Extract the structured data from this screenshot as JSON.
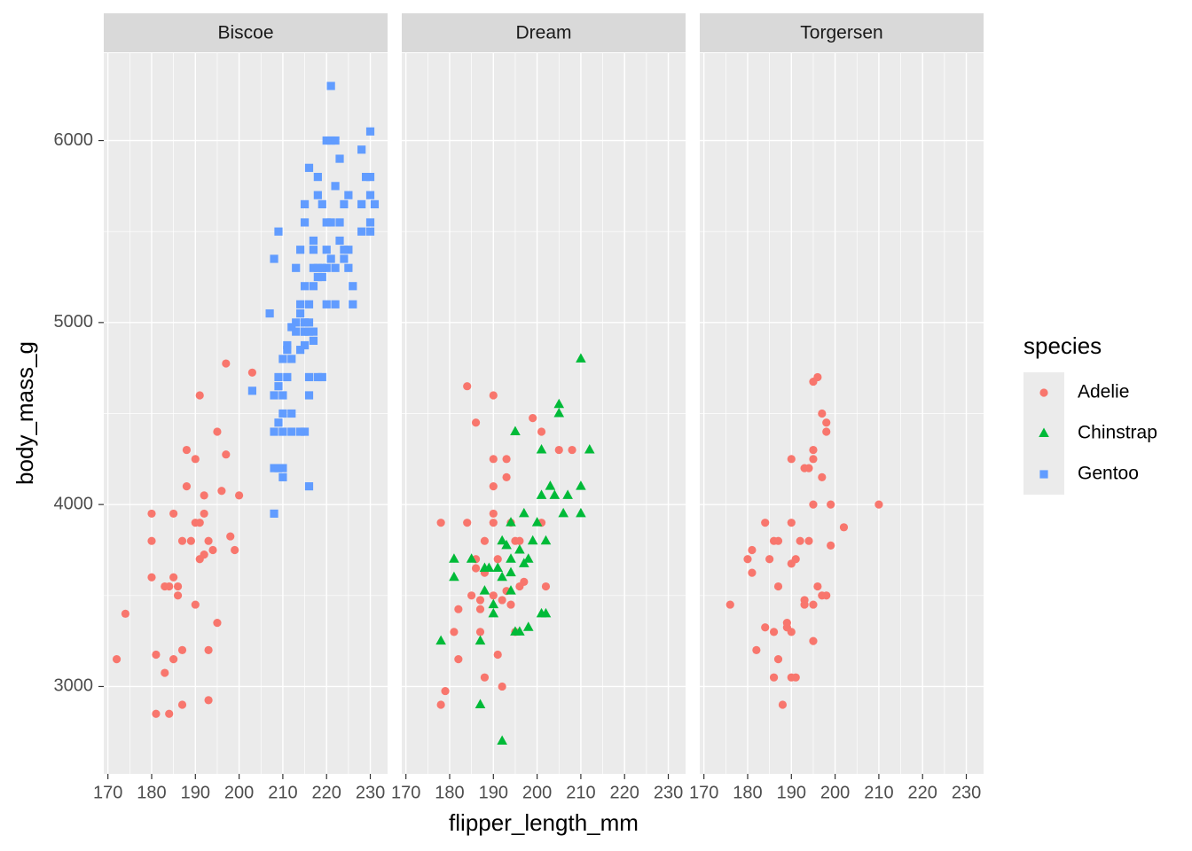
{
  "chart_data": {
    "type": "scatter",
    "xlabel": "flipper_length_mm",
    "ylabel": "body_mass_g",
    "legend_title": "species",
    "legend": "right",
    "grid": true,
    "xlim": [
      169.05,
      233.95
    ],
    "xticks": [
      170,
      180,
      190,
      200,
      210,
      220,
      230
    ],
    "ylim": [
      2520,
      6480
    ],
    "yticks": [
      3000,
      4000,
      5000,
      6000
    ],
    "series": [
      {
        "name": "Adelie",
        "color": "#F8766D",
        "shape": "circle"
      },
      {
        "name": "Chinstrap",
        "color": "#00BA38",
        "shape": "triangle"
      },
      {
        "name": "Gentoo",
        "color": "#619CFF",
        "shape": "square"
      }
    ],
    "facets": [
      {
        "title": "Biscoe",
        "series": [
          {
            "x": [
              172,
              174,
              180,
              180,
              180,
              181,
              181,
              183,
              183,
              184,
              184,
              185,
              185,
              185,
              186,
              186,
              187,
              187,
              187,
              188,
              188,
              189,
              190,
              190,
              190,
              191,
              191,
              191,
              192,
              192,
              192,
              193,
              193,
              193,
              194,
              195,
              195,
              196,
              197,
              197,
              198,
              199,
              200,
              203
            ],
            "values": [
              3150,
              3400,
              3950,
              3800,
              3600,
              3175,
              2850,
              3075,
              3550,
              3550,
              2850,
              3950,
              3600,
              3150,
              3550,
              3500,
              3800,
              2900,
              3200,
              4300,
              4100,
              3800,
              4250,
              3900,
              3450,
              3900,
              4600,
              3700,
              4050,
              3950,
              3725,
              3800,
              3200,
              2925,
              3750,
              4400,
              3350,
              4075,
              4775,
              4275,
              3825,
              3750,
              4050,
              4725
            ]
          },
          {
            "x": [],
            "values": []
          },
          {
            "x": [
              203,
              207,
              208,
              208,
              209,
              208,
              209,
              210,
              210,
              208,
              209,
              210,
              208,
              209,
              210,
              209,
              210,
              210,
              211,
              211,
              212,
              212,
              212,
              213,
              213,
              214,
              214,
              214,
              214,
              215,
              215,
              215,
              215,
              215,
              215,
              215,
              216,
              216,
              216,
              216,
              216,
              216,
              217,
              217,
              217,
              217,
              217,
              218,
              218,
              218,
              218,
              219,
              219,
              219,
              220,
              220,
              220,
              220,
              220,
              221,
              221,
              221,
              221,
              222,
              222,
              222,
              223,
              223,
              223,
              224,
              224,
              225,
              225,
              226,
              228,
              228,
              228,
              229,
              230,
              230,
              230,
              230,
              231,
              230,
              225,
              222,
              218,
              215,
              213,
              212,
              211,
              214,
              216,
              215,
              217,
              219,
              224,
              226
            ],
            "values": [
              4625,
              5050,
              3950,
              5350,
              5500,
              4200,
              4200,
              4200,
              4150,
              4400,
              4450,
              4500,
              4600,
              4650,
              4600,
              4700,
              4800,
              4400,
              4875,
              4700,
              4800,
              4975,
              4400,
              5300,
              5000,
              5100,
              5400,
              4850,
              4400,
              4875,
              4950,
              5000,
              5550,
              5650,
              5200,
              4400,
              4700,
              4600,
              5000,
              5100,
              5850,
              4100,
              4900,
              5200,
              5300,
              5450,
              5400,
              5300,
              5700,
              4700,
              5250,
              5250,
              5650,
              4700,
              5550,
              5400,
              6000,
              5100,
              5300,
              5550,
              6300,
              5350,
              6000,
              5750,
              6000,
              5300,
              5550,
              5900,
              5450,
              5350,
              5650,
              5400,
              5300,
              5200,
              5650,
              5950,
              5500,
              5800,
              5550,
              5700,
              6050,
              5800,
              5650,
              5500,
              5700,
              5100,
              5800,
              4950,
              4950,
              4500,
              4850,
              5050,
              4950,
              5000,
              4950,
              5300,
              5400,
              5100
            ]
          }
        ]
      },
      {
        "title": "Dream",
        "series": [
          {
            "x": [
              178,
              178,
              179,
              181,
              182,
              182,
              184,
              184,
              185,
              186,
              186,
              187,
              187,
              187,
              188,
              188,
              190,
              190,
              190,
              190,
              190,
              190,
              191,
              192,
              193,
              193,
              193,
              194,
              195,
              195,
              196,
              199,
              201,
              201,
              202,
              205,
              208,
              194,
              188,
              191,
              192,
              186,
              197,
              196
            ],
            "values": [
              3900,
              2900,
              2975,
              3300,
              3150,
              3425,
              4650,
              3900,
              3500,
              4450,
              3700,
              3300,
              3475,
              3425,
              3050,
              3800,
              3950,
              4100,
              4600,
              4250,
              3500,
              3900,
              3175,
              3000,
              4250,
              4150,
              3525,
              3900,
              3800,
              3300,
              3800,
              4475,
              4400,
              3900,
              3550,
              4300,
              4300,
              3450,
              3625,
              3700,
              3475,
              3650,
              3575,
              3550
            ]
          },
          {
            "x": [
              178,
              181,
              181,
              185,
              187,
              187,
              188,
              188,
              189,
              190,
              190,
              191,
              192,
              192,
              192,
              193,
              194,
              194,
              194,
              195,
              195,
              196,
              196,
              197,
              197,
              198,
              198,
              199,
              200,
              201,
              201,
              202,
              202,
              203,
              204,
              205,
              205,
              206,
              207,
              210,
              210,
              210,
              212,
              201,
              194
            ],
            "values": [
              3250,
              3700,
              3600,
              3700,
              3250,
              2900,
              3525,
              3650,
              3650,
              3450,
              3400,
              3650,
              2700,
              3800,
              3600,
              3775,
              3625,
              3700,
              3900,
              4400,
              3300,
              3300,
              3750,
              3675,
              3950,
              3700,
              3325,
              3800,
              3900,
              3400,
              4050,
              3400,
              3800,
              4100,
              4050,
              4550,
              4500,
              3950,
              4050,
              4800,
              4100,
              3950,
              4300,
              4300,
              3525
            ]
          },
          {
            "x": [],
            "values": []
          }
        ]
      },
      {
        "title": "Torgersen",
        "series": [
          {
            "x": [
              176,
              180,
              181,
              181,
              182,
              184,
              184,
              185,
              186,
              186,
              186,
              187,
              187,
              187,
              188,
              189,
              189,
              190,
              190,
              190,
              190,
              190,
              191,
              191,
              192,
              193,
              193,
              193,
              194,
              194,
              195,
              195,
              195,
              195,
              195,
              195,
              196,
              196,
              197,
              197,
              197,
              198,
              198,
              198,
              199,
              199,
              202,
              210
            ],
            "values": [
              3450,
              3700,
              3750,
              3625,
              3200,
              3900,
              3325,
              3700,
              3800,
              3300,
              3050,
              3800,
              3550,
              3150,
              2900,
              3350,
              3325,
              4250,
              3900,
              3675,
              3300,
              3050,
              3700,
              3050,
              3800,
              3450,
              3475,
              4200,
              4200,
              3800,
              3450,
              3250,
              4300,
              4250,
              4675,
              4000,
              4700,
              3550,
              4500,
              4150,
              3500,
              4450,
              4400,
              3500,
              4000,
              3775,
              3875,
              4000
            ]
          },
          {
            "x": [],
            "values": []
          },
          {
            "x": [],
            "values": []
          }
        ]
      }
    ]
  }
}
